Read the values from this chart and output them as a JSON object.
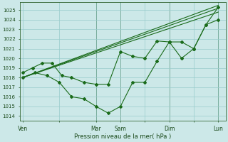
{
  "xlabel": "Pression niveau de la mer( hPa )",
  "background_color": "#cce8e8",
  "grid_color": "#99cccc",
  "line_color": "#1a6b1a",
  "vline_color": "#336633",
  "ylim": [
    1013.5,
    1025.8
  ],
  "xlim": [
    -0.1,
    8.3
  ],
  "xtick_labels": [
    "Ven",
    "",
    "Mar",
    "Sam",
    "",
    "Dim",
    "",
    "Lun"
  ],
  "xtick_positions": [
    0,
    1.5,
    3.0,
    4.0,
    5.0,
    6.0,
    7.0,
    8.0
  ],
  "ytick_values": [
    1014,
    1015,
    1016,
    1017,
    1018,
    1019,
    1020,
    1021,
    1022,
    1023,
    1024,
    1025
  ],
  "vline_positions": [
    3.0,
    4.0,
    6.0,
    8.0
  ],
  "series": [
    {
      "x": [
        0,
        8.0
      ],
      "y": [
        1018.0,
        1025.5
      ]
    },
    {
      "x": [
        0,
        8.0
      ],
      "y": [
        1018.0,
        1025.2
      ]
    },
    {
      "x": [
        0,
        8.0
      ],
      "y": [
        1018.0,
        1024.8
      ]
    },
    {
      "x": [
        0,
        0.4,
        0.8,
        1.2,
        1.6,
        2.0,
        2.5,
        3.0,
        3.5,
        4.0,
        4.5,
        5.0,
        5.5,
        6.0,
        6.5,
        7.0,
        7.5,
        8.0
      ],
      "y": [
        1018.5,
        1019.0,
        1019.5,
        1019.5,
        1018.2,
        1018.0,
        1017.5,
        1017.3,
        1017.3,
        1020.7,
        1020.2,
        1020.0,
        1021.8,
        1021.7,
        1021.7,
        1021.0,
        1023.5,
        1025.3
      ]
    },
    {
      "x": [
        0,
        0.5,
        1.0,
        1.5,
        2.0,
        2.5,
        3.0,
        3.5,
        4.0,
        4.5,
        5.0,
        5.5,
        6.0,
        6.5,
        7.0,
        7.5,
        8.0
      ],
      "y": [
        1018.0,
        1018.5,
        1018.2,
        1017.5,
        1016.0,
        1015.8,
        1015.0,
        1014.3,
        1015.0,
        1017.5,
        1017.5,
        1019.7,
        1021.7,
        1020.0,
        1021.0,
        1023.5,
        1024.0
      ]
    }
  ]
}
